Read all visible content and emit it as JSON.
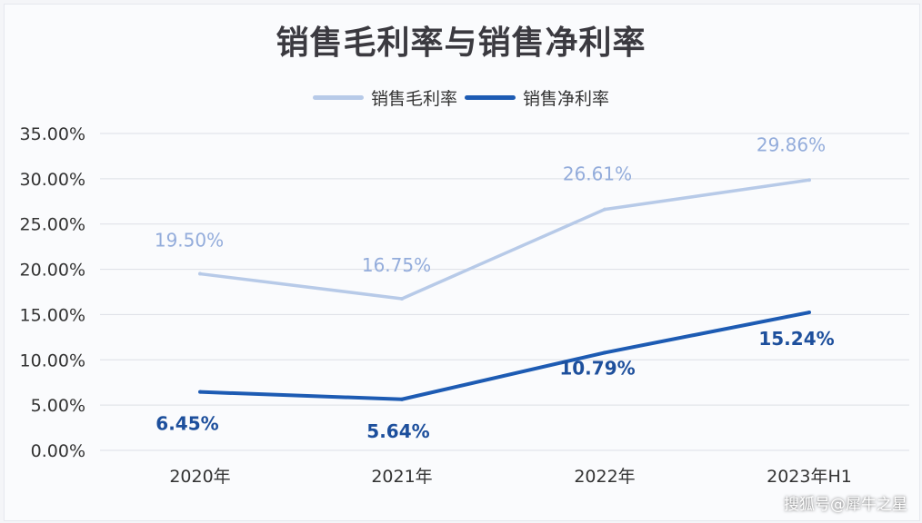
{
  "chart_data": {
    "type": "line",
    "title": "销售毛利率与销售净利率",
    "categories": [
      "2020年",
      "2021年",
      "2022年",
      "2023年H1"
    ],
    "series": [
      {
        "name": "销售毛利率",
        "values": [
          19.5,
          16.75,
          26.61,
          29.86
        ],
        "labels": [
          "19.50%",
          "16.75%",
          "26.61%",
          "29.86%"
        ],
        "color": "#b7cae8",
        "label_color": "#93acdb"
      },
      {
        "name": "销售净利率",
        "values": [
          6.45,
          5.64,
          10.79,
          15.24
        ],
        "labels": [
          "6.45%",
          "5.64%",
          "10.79%",
          "15.24%"
        ],
        "color": "#1d5bb3",
        "label_color": "#1d4f9c"
      }
    ],
    "yticks": [
      "0.00%",
      "5.00%",
      "10.00%",
      "15.00%",
      "20.00%",
      "25.00%",
      "30.00%",
      "35.00%"
    ],
    "ylim": [
      0,
      35
    ],
    "grid": true,
    "legend": "top-center",
    "xlabel": "",
    "ylabel": ""
  },
  "watermark": "搜狐号@犀牛之星"
}
